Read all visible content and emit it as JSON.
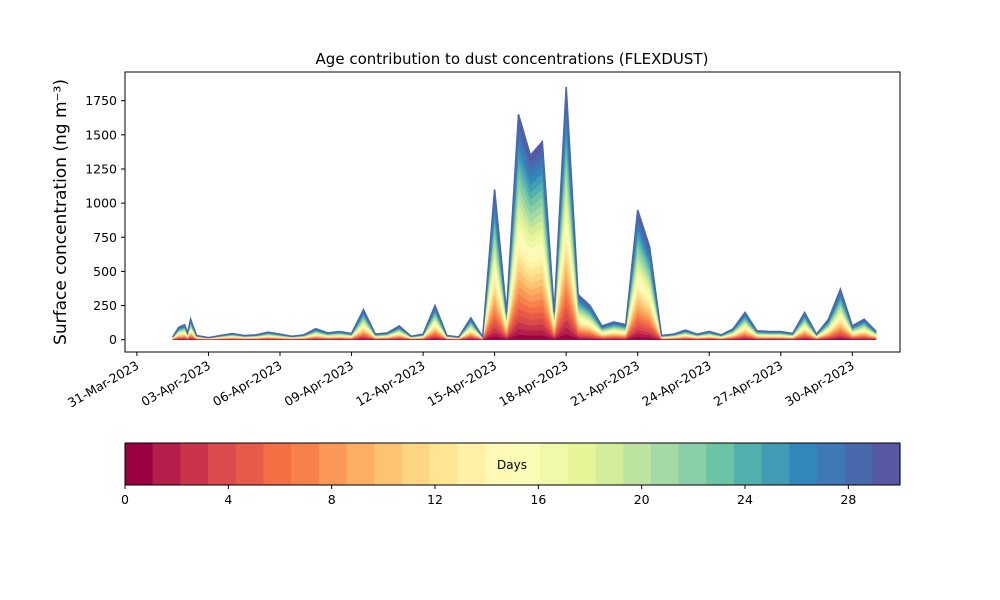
{
  "chart_data": {
    "type": "area",
    "title": "Age contribution to dust concentrations (FLEXDUST)",
    "ylabel": "Surface concentration (ng m⁻³)",
    "xlabel": "",
    "xlim": [
      "2023-03-30T12:00",
      "2023-05-02T00:00"
    ],
    "ylim": [
      -90,
      1960
    ],
    "y_ticks": [
      0,
      250,
      500,
      750,
      1000,
      1250,
      1500,
      1750
    ],
    "x_ticks": [
      "2023-03-31",
      "2023-04-03",
      "2023-04-06",
      "2023-04-09",
      "2023-04-12",
      "2023-04-15",
      "2023-04-18",
      "2023-04-21",
      "2023-04-24",
      "2023-04-27",
      "2023-04-30"
    ],
    "x_tick_labels": [
      "31-Mar-2023",
      "03-Apr-2023",
      "06-Apr-2023",
      "09-Apr-2023",
      "12-Apr-2023",
      "15-Apr-2023",
      "18-Apr-2023",
      "21-Apr-2023",
      "24-Apr-2023",
      "27-Apr-2023",
      "30-Apr-2023"
    ],
    "grid": false,
    "stacking": "cumulative by particle age (days)",
    "total_concentration": {
      "x": [
        "2023-04-01T12:00",
        "2023-04-01T18:00",
        "2023-04-02T00:00",
        "2023-04-02T03:00",
        "2023-04-02T06:00",
        "2023-04-02T12:00",
        "2023-04-03T00:00",
        "2023-04-03T12:00",
        "2023-04-04T00:00",
        "2023-04-04T12:00",
        "2023-04-05T00:00",
        "2023-04-05T12:00",
        "2023-04-06T00:00",
        "2023-04-06T12:00",
        "2023-04-07T00:00",
        "2023-04-07T12:00",
        "2023-04-08T00:00",
        "2023-04-08T12:00",
        "2023-04-09T00:00",
        "2023-04-09T12:00",
        "2023-04-10T00:00",
        "2023-04-10T12:00",
        "2023-04-11T00:00",
        "2023-04-11T12:00",
        "2023-04-12T00:00",
        "2023-04-12T12:00",
        "2023-04-13T00:00",
        "2023-04-13T12:00",
        "2023-04-14T00:00",
        "2023-04-14T12:00",
        "2023-04-15T00:00",
        "2023-04-15T12:00",
        "2023-04-16T00:00",
        "2023-04-16T12:00",
        "2023-04-17T00:00",
        "2023-04-17T12:00",
        "2023-04-18T00:00",
        "2023-04-18T12:00",
        "2023-04-19T00:00",
        "2023-04-19T12:00",
        "2023-04-20T00:00",
        "2023-04-20T12:00",
        "2023-04-21T00:00",
        "2023-04-21T12:00",
        "2023-04-22T00:00",
        "2023-04-22T12:00",
        "2023-04-23T00:00",
        "2023-04-23T12:00",
        "2023-04-24T00:00",
        "2023-04-24T12:00",
        "2023-04-25T00:00",
        "2023-04-25T12:00",
        "2023-04-26T00:00",
        "2023-04-26T12:00",
        "2023-04-27T00:00",
        "2023-04-27T12:00",
        "2023-04-28T00:00",
        "2023-04-28T12:00",
        "2023-04-29T00:00",
        "2023-04-29T12:00",
        "2023-04-30T00:00",
        "2023-04-30T12:00",
        "2023-05-01T00:00"
      ],
      "y": [
        20,
        90,
        110,
        50,
        150,
        30,
        15,
        30,
        45,
        30,
        35,
        55,
        40,
        25,
        35,
        80,
        50,
        60,
        45,
        220,
        40,
        50,
        100,
        25,
        40,
        250,
        30,
        20,
        160,
        20,
        1100,
        200,
        1650,
        1350,
        1450,
        200,
        1850,
        330,
        250,
        100,
        130,
        110,
        950,
        680,
        30,
        40,
        70,
        40,
        60,
        35,
        80,
        200,
        65,
        60,
        60,
        45,
        200,
        40,
        150,
        370,
        100,
        150,
        60
      ]
    },
    "colorbar": {
      "label": "Days",
      "ticks": [
        0,
        4,
        8,
        12,
        16,
        20,
        24,
        28
      ],
      "range": [
        0,
        30
      ],
      "levels": 30,
      "colormap": "Spectral",
      "colors": [
        "#9e0142",
        "#b51d4a",
        "#cb334c",
        "#dc4a4c",
        "#e75949",
        "#f46d43",
        "#f7804c",
        "#fa9857",
        "#fcae61",
        "#fdc371",
        "#fed582",
        "#fee593",
        "#fff1a6",
        "#fff9b5",
        "#fbfdb6",
        "#f0f9a8",
        "#e6f598",
        "#d4ed9b",
        "#bce4a0",
        "#a3d9a4",
        "#88cfa5",
        "#6cc3a5",
        "#54b0ad",
        "#429bb4",
        "#3288bd",
        "#3e78b6",
        "#4a68ad",
        "#5757a4"
      ]
    }
  }
}
